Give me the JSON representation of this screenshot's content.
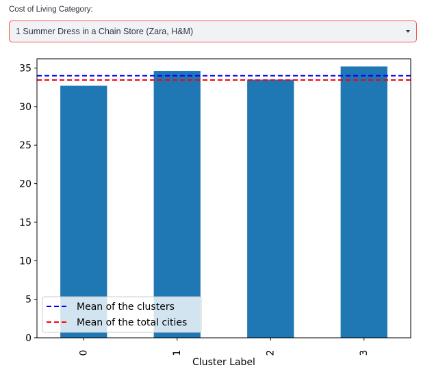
{
  "selector": {
    "label": "Cost of Living Category:",
    "value": "1 Summer Dress in a Chain Store (Zara, H&M)"
  },
  "colors": {
    "bar": "#1f77b4",
    "clusters_mean_line": "#0000ff",
    "total_mean_line": "#ff0000",
    "select_border": "#ff4b4b",
    "select_bg": "#f0f2f6"
  },
  "chart_data": {
    "type": "bar",
    "categories": [
      "0",
      "1",
      "2",
      "3"
    ],
    "values": [
      32.7,
      34.6,
      33.5,
      35.2
    ],
    "xlabel": "Cluster Label",
    "ylabel": "",
    "ylim": [
      0,
      36.2
    ],
    "yticks": [
      0,
      5,
      10,
      15,
      20,
      25,
      30,
      35
    ],
    "reference_lines": [
      {
        "name": "Mean of the clusters",
        "value": 34.0,
        "style": "dashed",
        "color": "#0000ff"
      },
      {
        "name": "Mean of the total cities",
        "value": 33.45,
        "style": "dashed",
        "color": "#ff0000"
      }
    ],
    "legend_position": "lower-left",
    "grid": false
  }
}
